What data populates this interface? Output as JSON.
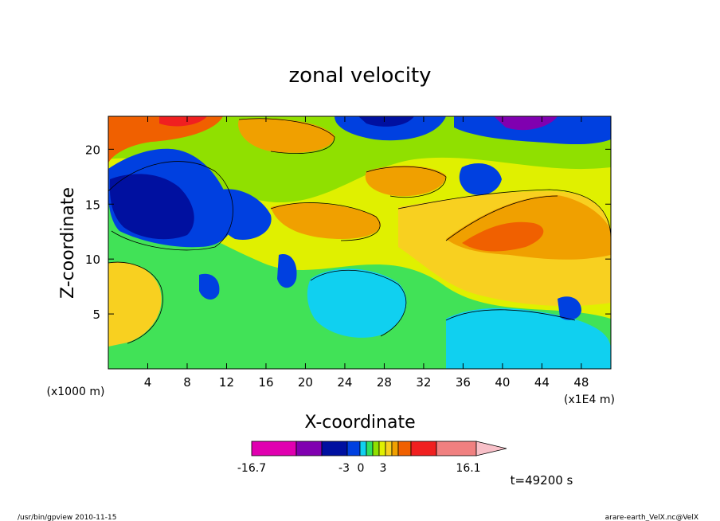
{
  "chart_data": {
    "type": "heatmap",
    "title": "zonal velocity",
    "xlabel": "X-coordinate",
    "ylabel": "Z-coordinate",
    "x_unit_left": "(x1000 m)",
    "x_unit_right": "(x1E4 m)",
    "xlim": [
      0,
      51
    ],
    "ylim": [
      0,
      23
    ],
    "x_ticks": [
      4,
      8,
      12,
      16,
      20,
      24,
      28,
      32,
      36,
      40,
      44,
      48
    ],
    "y_ticks": [
      5,
      10,
      15,
      20
    ],
    "colorbar": {
      "min": -16.7,
      "max": 16.1,
      "labels": [
        "-16.7",
        "-3",
        "0",
        "3",
        "16.1"
      ],
      "colors": [
        "#e000b0",
        "#8000b0",
        "#0010a0",
        "#0040e0",
        "#10d0f0",
        "#30e060",
        "#90e000",
        "#e0f000",
        "#f8d020",
        "#f0a000",
        "#f06000",
        "#f02020",
        "#f08080",
        "#f8c0c8"
      ]
    },
    "time_label": "t=49200 s"
  },
  "footer": {
    "left": "/usr/bin/gpview  2010-11-15",
    "right": "arare-earth_VelX.nc@VelX"
  },
  "colors": {
    "blue_dark": "#0010a0",
    "blue": "#0040e0",
    "cyan": "#10d0f0",
    "green": "#30e060",
    "yellowgreen": "#90e000",
    "yellow": "#e0f000",
    "gold": "#f8d020",
    "orange": "#f0a000",
    "darkorange": "#f06000",
    "red": "#f02020"
  }
}
